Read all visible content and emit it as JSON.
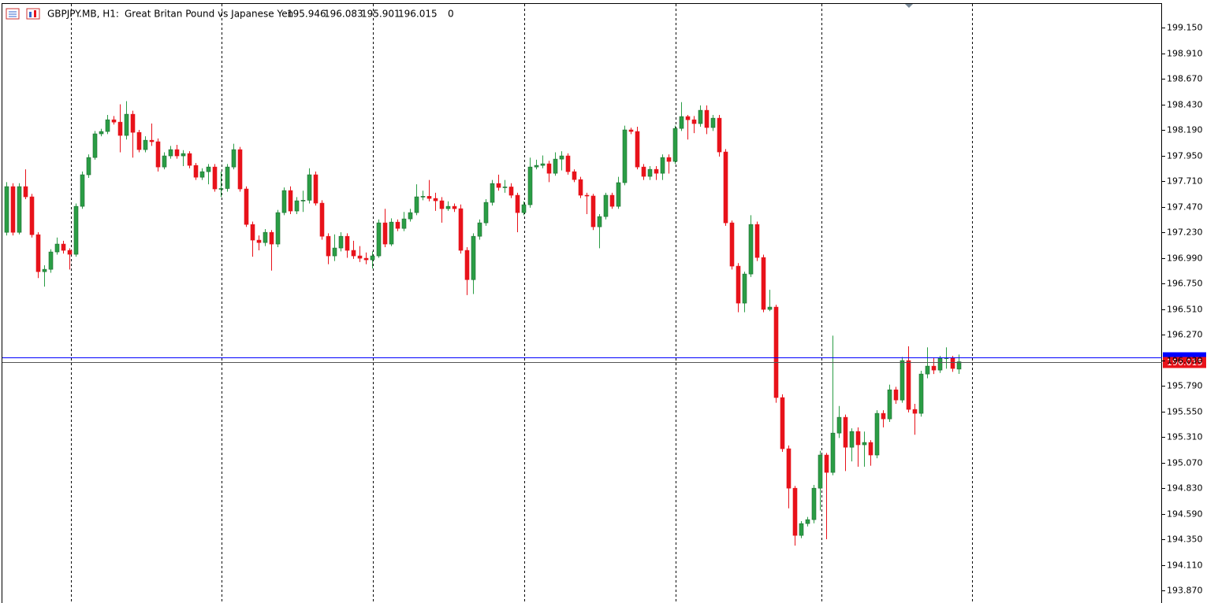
{
  "chart_data": {
    "type": "candlestick",
    "symbol": "GBPJPY.MB, H1:",
    "description": "Great Britan Pound vs Japanese Yen",
    "volume": 0,
    "up_color": "#2a9d45",
    "down_color": "#e8121a",
    "ask_line": {
      "value": 196.055,
      "color": "#0000ff"
    },
    "last_line_color": "#555555",
    "ylim": [
      193.752,
      199.379
    ],
    "yticks": [
      {
        "value": 199.15,
        "label": "199.150"
      },
      {
        "value": 198.91,
        "label": "198.910"
      },
      {
        "value": 198.67,
        "label": "198.670"
      },
      {
        "value": 198.43,
        "label": "198.430"
      },
      {
        "value": 198.19,
        "label": "198.190"
      },
      {
        "value": 197.95,
        "label": "197.950"
      },
      {
        "value": 197.71,
        "label": "197.710"
      },
      {
        "value": 197.47,
        "label": "197.470"
      },
      {
        "value": 197.23,
        "label": "197.230"
      },
      {
        "value": 196.99,
        "label": "196.990"
      },
      {
        "value": 196.75,
        "label": "196.750"
      },
      {
        "value": 196.51,
        "label": "196.510"
      },
      {
        "value": 196.27,
        "label": "196.270"
      },
      {
        "value": 196.03,
        "label": "196.030"
      },
      {
        "value": 195.79,
        "label": "195.790"
      },
      {
        "value": 195.55,
        "label": "195.550"
      },
      {
        "value": 195.31,
        "label": "195.310"
      },
      {
        "value": 195.07,
        "label": "195.070"
      },
      {
        "value": 194.83,
        "label": "194.830"
      },
      {
        "value": 194.59,
        "label": "194.590"
      },
      {
        "value": 194.35,
        "label": "194.350"
      },
      {
        "value": 194.11,
        "label": "194.110"
      },
      {
        "value": 193.87,
        "label": "193.870"
      }
    ],
    "ohlc": [
      [
        197.229,
        197.7,
        197.2,
        197.658
      ],
      [
        197.658,
        197.69,
        197.2,
        197.229
      ],
      [
        197.229,
        197.69,
        197.21,
        197.658
      ],
      [
        197.658,
        197.82,
        197.54,
        197.562
      ],
      [
        197.562,
        197.59,
        197.18,
        197.207
      ],
      [
        197.207,
        197.23,
        196.8,
        196.86
      ],
      [
        196.86,
        196.92,
        196.72,
        196.882
      ],
      [
        196.882,
        197.07,
        196.85,
        197.045
      ],
      [
        197.045,
        197.18,
        197.02,
        197.119
      ],
      [
        197.119,
        197.15,
        197.03,
        197.06
      ],
      [
        197.06,
        197.08,
        196.88,
        197.023
      ],
      [
        197.023,
        197.5,
        197.0,
        197.473
      ],
      [
        197.473,
        197.8,
        197.45,
        197.769
      ],
      [
        197.769,
        197.96,
        197.74,
        197.931
      ],
      [
        197.931,
        198.18,
        197.91,
        198.153
      ],
      [
        198.153,
        198.2,
        198.13,
        198.175
      ],
      [
        198.175,
        198.33,
        198.15,
        198.285
      ],
      [
        198.285,
        198.32,
        198.24,
        198.263
      ],
      [
        198.263,
        198.43,
        197.98,
        198.138
      ],
      [
        198.138,
        198.46,
        198.1,
        198.337
      ],
      [
        198.337,
        198.37,
        197.93,
        198.167
      ],
      [
        198.167,
        198.19,
        197.98,
        198.005
      ],
      [
        198.005,
        198.13,
        197.98,
        198.093
      ],
      [
        198.093,
        198.25,
        198.04,
        198.079
      ],
      [
        198.079,
        198.11,
        197.8,
        197.842
      ],
      [
        197.842,
        197.98,
        197.82,
        197.946
      ],
      [
        197.946,
        198.04,
        197.92,
        198.005
      ],
      [
        198.005,
        198.05,
        197.92,
        197.946
      ],
      [
        197.946,
        198.0,
        197.85,
        197.968
      ],
      [
        197.968,
        197.99,
        197.83,
        197.857
      ],
      [
        197.857,
        197.88,
        197.72,
        197.746
      ],
      [
        197.746,
        197.83,
        197.72,
        197.798
      ],
      [
        197.798,
        197.87,
        197.68,
        197.842
      ],
      [
        197.842,
        197.87,
        197.61,
        197.636
      ],
      [
        197.636,
        197.8,
        197.56,
        197.64
      ],
      [
        197.64,
        197.87,
        197.61,
        197.842
      ],
      [
        197.842,
        198.06,
        197.82,
        198.005
      ],
      [
        198.005,
        198.03,
        197.61,
        197.636
      ],
      [
        197.636,
        197.66,
        197.28,
        197.303
      ],
      [
        197.303,
        197.33,
        197.0,
        197.156
      ],
      [
        197.156,
        197.2,
        197.06,
        197.133
      ],
      [
        197.133,
        197.26,
        197.1,
        197.229
      ],
      [
        197.229,
        197.25,
        196.87,
        197.119
      ],
      [
        197.119,
        197.44,
        197.09,
        197.414
      ],
      [
        197.414,
        197.65,
        197.39,
        197.621
      ],
      [
        197.621,
        197.66,
        197.4,
        197.429
      ],
      [
        197.429,
        197.56,
        197.4,
        197.525
      ],
      [
        197.525,
        197.62,
        197.42,
        197.53
      ],
      [
        197.53,
        197.83,
        197.5,
        197.769
      ],
      [
        197.769,
        197.8,
        197.48,
        197.503
      ],
      [
        197.503,
        197.53,
        197.16,
        197.192
      ],
      [
        197.192,
        197.22,
        196.93,
        197.008
      ],
      [
        197.008,
        197.21,
        196.96,
        197.082
      ],
      [
        197.082,
        197.23,
        197.05,
        197.192
      ],
      [
        197.192,
        197.22,
        196.99,
        197.06
      ],
      [
        197.06,
        197.15,
        196.98,
        197.008
      ],
      [
        197.008,
        197.1,
        196.95,
        196.986
      ],
      [
        196.986,
        197.04,
        196.93,
        196.971
      ],
      [
        196.971,
        197.05,
        196.89,
        197.008
      ],
      [
        197.008,
        197.35,
        196.99,
        197.318
      ],
      [
        197.318,
        197.45,
        197.09,
        197.119
      ],
      [
        197.119,
        197.36,
        197.1,
        197.325
      ],
      [
        197.325,
        197.35,
        197.24,
        197.266
      ],
      [
        197.266,
        197.42,
        197.24,
        197.355
      ],
      [
        197.355,
        197.45,
        197.33,
        197.414
      ],
      [
        197.414,
        197.68,
        197.39,
        197.562
      ],
      [
        197.562,
        197.62,
        197.53,
        197.567
      ],
      [
        197.567,
        197.72,
        197.52,
        197.547
      ],
      [
        197.547,
        197.6,
        197.43,
        197.525
      ],
      [
        197.525,
        197.56,
        197.32,
        197.451
      ],
      [
        197.451,
        197.52,
        197.43,
        197.473
      ],
      [
        197.473,
        197.5,
        197.42,
        197.451
      ],
      [
        197.451,
        197.49,
        197.03,
        197.06
      ],
      [
        197.06,
        197.09,
        196.64,
        196.785
      ],
      [
        196.785,
        197.22,
        196.65,
        197.192
      ],
      [
        197.192,
        197.35,
        197.16,
        197.318
      ],
      [
        197.318,
        197.54,
        197.29,
        197.51
      ],
      [
        197.51,
        197.72,
        197.48,
        197.687
      ],
      [
        197.687,
        197.77,
        197.62,
        197.65
      ],
      [
        197.65,
        197.72,
        197.6,
        197.655
      ],
      [
        197.655,
        197.69,
        197.55,
        197.577
      ],
      [
        197.577,
        197.6,
        197.23,
        197.414
      ],
      [
        197.414,
        197.52,
        197.39,
        197.488
      ],
      [
        197.488,
        197.93,
        197.46,
        197.842
      ],
      [
        197.842,
        197.91,
        197.82,
        197.857
      ],
      [
        197.857,
        197.95,
        197.83,
        197.872
      ],
      [
        197.872,
        197.9,
        197.7,
        197.783
      ],
      [
        197.783,
        197.98,
        197.76,
        197.916
      ],
      [
        197.916,
        197.99,
        197.81,
        197.946
      ],
      [
        197.946,
        197.97,
        197.77,
        197.798
      ],
      [
        197.798,
        197.82,
        197.7,
        197.724
      ],
      [
        197.724,
        197.75,
        197.55,
        197.577
      ],
      [
        197.577,
        197.6,
        197.4,
        197.57
      ],
      [
        197.57,
        197.59,
        197.25,
        197.281
      ],
      [
        197.281,
        197.4,
        197.08,
        197.377
      ],
      [
        197.377,
        197.6,
        197.35,
        197.577
      ],
      [
        197.577,
        197.6,
        197.45,
        197.473
      ],
      [
        197.473,
        197.75,
        197.45,
        197.695
      ],
      [
        197.695,
        198.23,
        197.67,
        198.19
      ],
      [
        198.19,
        198.21,
        198.15,
        198.175
      ],
      [
        198.175,
        198.22,
        197.82,
        197.842
      ],
      [
        197.842,
        197.87,
        197.72,
        197.754
      ],
      [
        197.754,
        197.85,
        197.72,
        197.82
      ],
      [
        197.82,
        197.85,
        197.72,
        197.783
      ],
      [
        197.783,
        197.96,
        197.72,
        197.931
      ],
      [
        197.931,
        197.96,
        197.78,
        197.894
      ],
      [
        197.894,
        198.23,
        197.87,
        198.204
      ],
      [
        198.204,
        198.45,
        198.18,
        198.315
      ],
      [
        198.315,
        198.33,
        198.1,
        198.285
      ],
      [
        198.285,
        198.32,
        198.16,
        198.249
      ],
      [
        198.249,
        198.42,
        198.22,
        198.374
      ],
      [
        198.374,
        198.42,
        198.15,
        198.212
      ],
      [
        198.212,
        198.33,
        198.18,
        198.3
      ],
      [
        198.3,
        198.33,
        197.94,
        197.983
      ],
      [
        197.983,
        198.01,
        197.29,
        197.318
      ],
      [
        197.318,
        197.34,
        196.88,
        196.912
      ],
      [
        196.912,
        196.94,
        196.48,
        196.565
      ],
      [
        196.565,
        196.86,
        196.48,
        196.838
      ],
      [
        196.838,
        197.39,
        196.81,
        197.303
      ],
      [
        197.303,
        197.33,
        196.96,
        196.993
      ],
      [
        196.993,
        197.02,
        196.48,
        196.506
      ],
      [
        196.506,
        196.69,
        196.49,
        196.528
      ],
      [
        196.528,
        196.55,
        195.63,
        195.679
      ],
      [
        195.679,
        195.71,
        195.17,
        195.199
      ],
      [
        195.199,
        195.23,
        194.64,
        194.829
      ],
      [
        194.829,
        194.85,
        194.29,
        194.386
      ],
      [
        194.386,
        194.52,
        194.36,
        194.497
      ],
      [
        194.497,
        194.56,
        194.47,
        194.534
      ],
      [
        194.534,
        194.86,
        194.5,
        194.829
      ],
      [
        194.829,
        195.18,
        194.62,
        195.14
      ],
      [
        195.14,
        195.16,
        194.35,
        194.977
      ],
      [
        194.977,
        196.26,
        194.95,
        195.346
      ],
      [
        195.346,
        195.6,
        195.3,
        195.494
      ],
      [
        195.494,
        195.52,
        194.99,
        195.213
      ],
      [
        195.213,
        195.39,
        195.08,
        195.361
      ],
      [
        195.361,
        195.4,
        195.03,
        195.236
      ],
      [
        195.236,
        195.36,
        195.03,
        195.258
      ],
      [
        195.258,
        195.28,
        195.04,
        195.14
      ],
      [
        195.14,
        195.56,
        195.11,
        195.531
      ],
      [
        195.531,
        195.56,
        195.4,
        195.479
      ],
      [
        195.479,
        195.8,
        195.45,
        195.752
      ],
      [
        195.752,
        195.78,
        195.62,
        195.656
      ],
      [
        195.656,
        196.06,
        195.63,
        196.026
      ],
      [
        196.026,
        196.16,
        195.54,
        195.568
      ],
      [
        195.568,
        195.62,
        195.33,
        195.531
      ],
      [
        195.531,
        195.93,
        195.5,
        195.9
      ],
      [
        195.9,
        196.15,
        195.86,
        195.974
      ],
      [
        195.974,
        196.05,
        195.9,
        195.937
      ],
      [
        195.937,
        196.07,
        195.91,
        196.048
      ],
      [
        196.048,
        196.15,
        195.95,
        196.052
      ],
      [
        196.052,
        196.07,
        195.92,
        195.952
      ],
      [
        195.946,
        196.083,
        195.901,
        196.015
      ]
    ]
  }
}
